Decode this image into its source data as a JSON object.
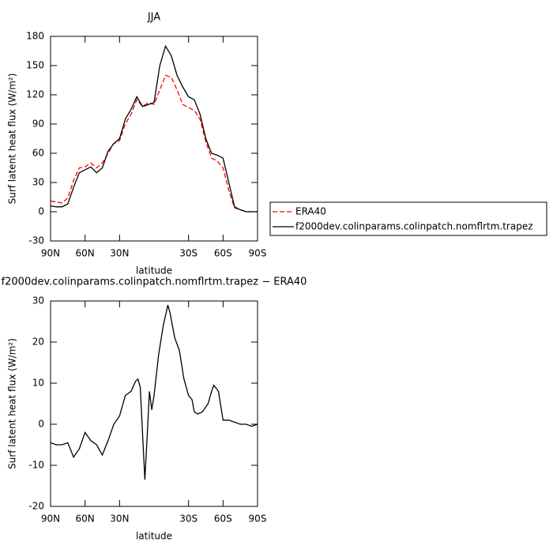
{
  "chart_data": [
    {
      "type": "line",
      "title": "JJA",
      "xlabel": "latitude",
      "ylabel": "Surf latent heat flux (W/m²)",
      "x": [
        90,
        85,
        80,
        75,
        70,
        65,
        60,
        55,
        50,
        45,
        40,
        35,
        30,
        25,
        20,
        15,
        10,
        5,
        0,
        -5,
        -10,
        -15,
        -20,
        -25,
        -30,
        -35,
        -40,
        -45,
        -50,
        -55,
        -60,
        -65,
        -70,
        -75,
        -80,
        -85,
        -90
      ],
      "series": [
        {
          "name": "ERA40",
          "color": "#ff0000",
          "dash": true,
          "values": [
            11,
            10,
            9,
            14,
            32,
            45,
            46,
            50,
            45,
            50,
            60,
            70,
            73,
            90,
            100,
            115,
            108,
            112,
            110,
            125,
            140,
            138,
            125,
            110,
            107,
            104,
            95,
            72,
            55,
            52,
            45,
            22,
            4,
            2,
            0,
            0,
            0
          ]
        },
        {
          "name": "f2000dev.colinparams.colinpatch.nomflrtm.trapez",
          "color": "#000000",
          "dash": false,
          "values": [
            6,
            5,
            5,
            8,
            25,
            40,
            43,
            46,
            40,
            45,
            62,
            70,
            75,
            95,
            105,
            118,
            108,
            110,
            112,
            150,
            170,
            160,
            140,
            128,
            118,
            115,
            100,
            75,
            60,
            58,
            55,
            30,
            5,
            2,
            0,
            0,
            0
          ]
        }
      ],
      "xlim": [
        90,
        -90
      ],
      "ylim": [
        -30,
        180
      ],
      "xticks": [
        {
          "value": 90,
          "label": "90N"
        },
        {
          "value": 60,
          "label": "60N"
        },
        {
          "value": 30,
          "label": "30N"
        },
        {
          "value": -30,
          "label": "30S"
        },
        {
          "value": -60,
          "label": "60S"
        },
        {
          "value": -90,
          "label": "90S"
        }
      ],
      "yticks": [
        -30,
        0,
        30,
        60,
        90,
        120,
        150,
        180
      ],
      "legend": "right"
    },
    {
      "type": "line",
      "title": "f2000dev.colinparams.colinpatch.nomflrtm.trapez − ERA40",
      "xlabel": "latitude",
      "ylabel": "Surf latent heat flux (W/m²)",
      "x": [
        90,
        85,
        80,
        75,
        70,
        65,
        60,
        55,
        50,
        45,
        40,
        35,
        30,
        25,
        20,
        16,
        14,
        12,
        8,
        6,
        4,
        2,
        0,
        -4,
        -8,
        -12,
        -14,
        -18,
        -22,
        -26,
        -30,
        -33,
        -35,
        -38,
        -42,
        -47,
        -50,
        -52,
        -56,
        -60,
        -65,
        -70,
        -75,
        -80,
        -85,
        -90
      ],
      "series": [
        {
          "color": "#000000",
          "dash": false,
          "values": [
            -4.5,
            -5,
            -5,
            -4.5,
            -8,
            -6,
            -2,
            -4,
            -5,
            -7.5,
            -4,
            0,
            2,
            7,
            8,
            10.5,
            11,
            9,
            -13.5,
            -3,
            8,
            3.5,
            7,
            17,
            24,
            29,
            27,
            21,
            18,
            11,
            7,
            6,
            3,
            2.5,
            3,
            5,
            8,
            9.5,
            8,
            1,
            1,
            0.5,
            0,
            0,
            -0.5,
            0
          ]
        }
      ],
      "xlim": [
        90,
        -90
      ],
      "ylim": [
        -20,
        30
      ],
      "xticks": [
        {
          "value": 90,
          "label": "90N"
        },
        {
          "value": 60,
          "label": "60N"
        },
        {
          "value": 30,
          "label": "30N"
        },
        {
          "value": -30,
          "label": "30S"
        },
        {
          "value": -60,
          "label": "60S"
        },
        {
          "value": -90,
          "label": "90S"
        }
      ],
      "yticks": [
        -20,
        -10,
        0,
        10,
        20,
        30
      ]
    }
  ]
}
